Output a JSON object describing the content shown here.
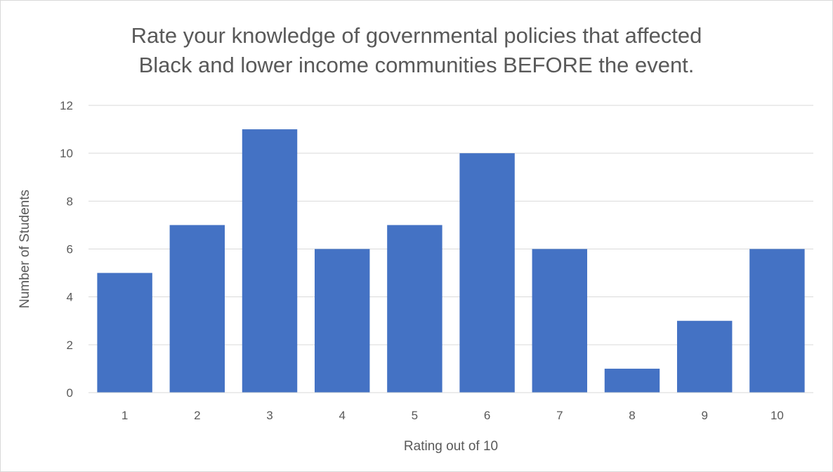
{
  "chart_data": {
    "type": "bar",
    "title_lines": [
      "Rate your knowledge of governmental policies that affected",
      "Black and lower income communities BEFORE the event."
    ],
    "categories": [
      "1",
      "2",
      "3",
      "4",
      "5",
      "6",
      "7",
      "8",
      "9",
      "10"
    ],
    "values": [
      5,
      7,
      11,
      6,
      7,
      10,
      6,
      1,
      3,
      6
    ],
    "xlabel": "Rating out of 10",
    "ylabel": "Number of Students",
    "ylim": [
      0,
      12
    ],
    "yticks": [
      "0",
      "2",
      "4",
      "6",
      "8",
      "10",
      "12"
    ],
    "bar_color": "#4472C4",
    "grid": true,
    "legend": false
  }
}
